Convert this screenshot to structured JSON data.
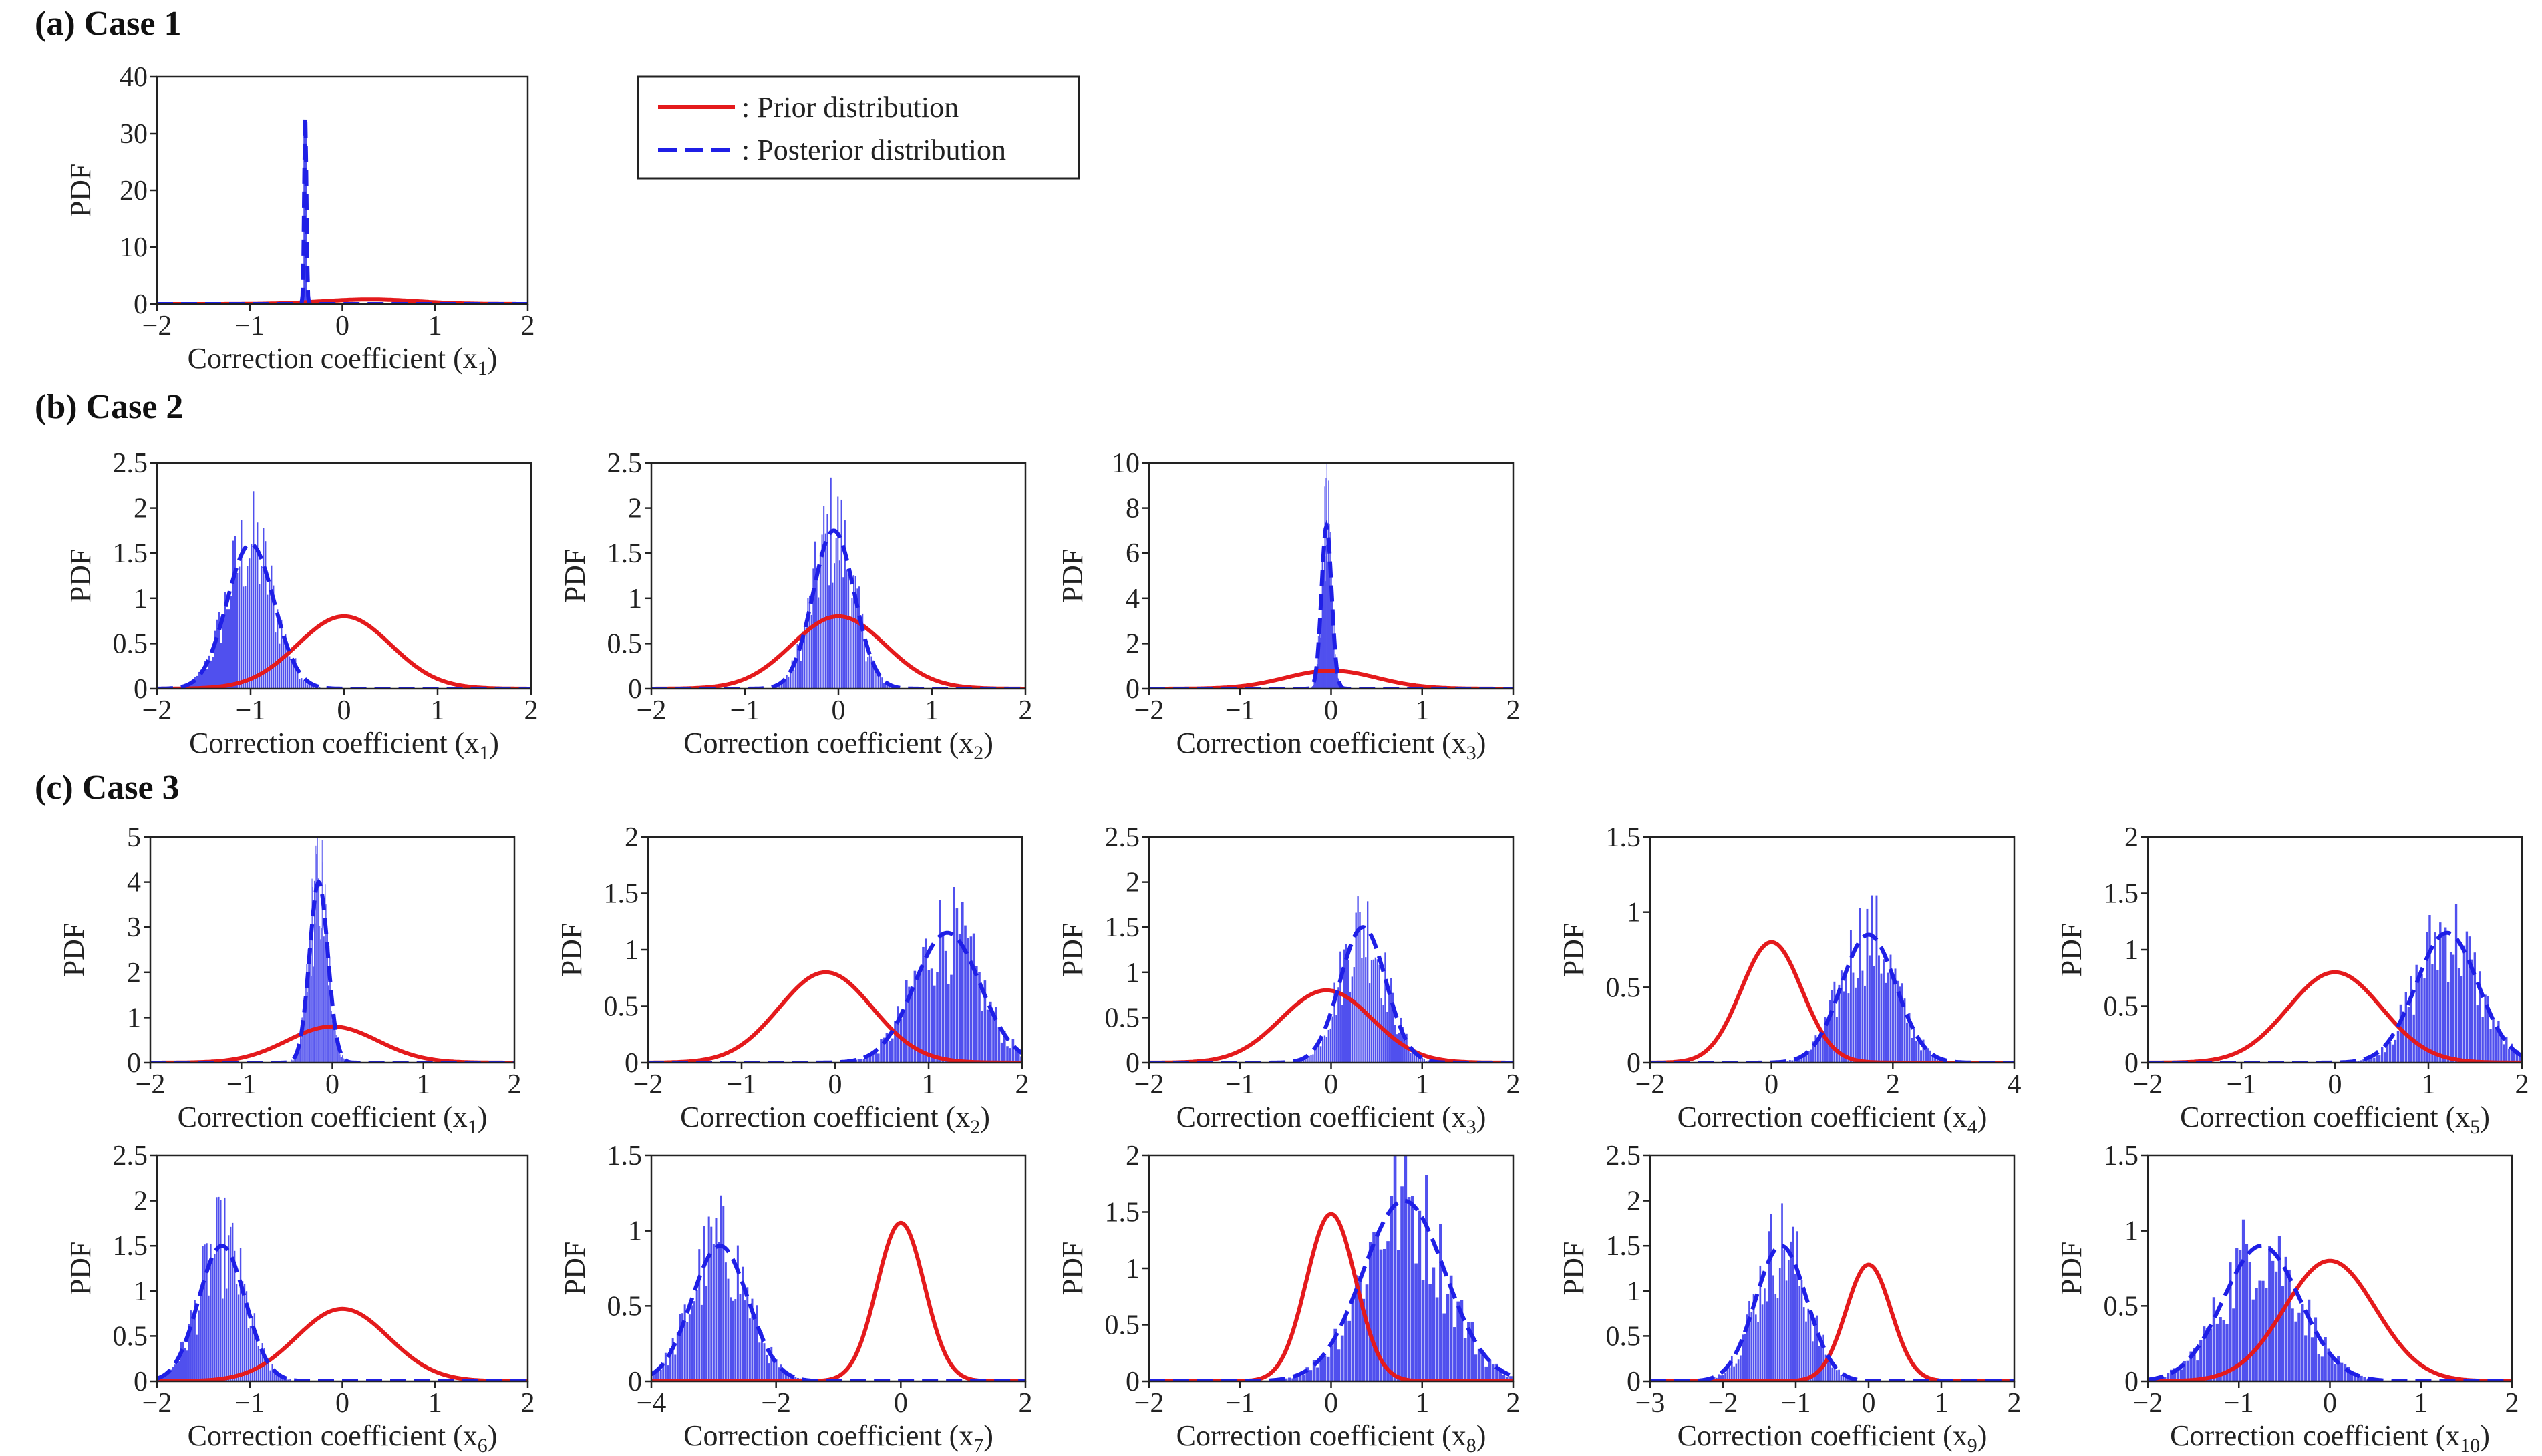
{
  "figure": {
    "legend": {
      "prior_label": ": Prior distribution",
      "posterior_label": ": Posterior distribution",
      "prior_color": "#e41a1c",
      "posterior_color": "#1f1fe6",
      "hist_color": "#5050ee"
    }
  },
  "chart_data": [
    {
      "type": "histogram",
      "case": "(a) Case 1",
      "panel": "a1",
      "var": "1",
      "xlabel": "Correction coefficient (x",
      "ylabel": "PDF",
      "xlim": [
        -2,
        2
      ],
      "ylim": [
        0,
        40
      ],
      "xticks": [
        "−2",
        "−1",
        "0",
        "1",
        "2"
      ],
      "yticks": [
        "0",
        "10",
        "20",
        "30",
        "40"
      ],
      "prior": {
        "mean": 0.3,
        "sd": 0.5
      },
      "posterior": {
        "mean": -0.4,
        "sd": 0.012,
        "peak": 33
      },
      "hist_mode": "spike"
    },
    {
      "type": "histogram",
      "case": "(b) Case 2",
      "panel": "b1",
      "var": "1",
      "xlabel": "Correction coefficient (x",
      "ylabel": "PDF",
      "xlim": [
        -2,
        2
      ],
      "ylim": [
        0,
        2.5
      ],
      "xticks": [
        "−2",
        "−1",
        "0",
        "1",
        "2"
      ],
      "yticks": [
        "0",
        "0.5",
        "1",
        "1.5",
        "2",
        "2.5"
      ],
      "prior": {
        "mean": 0,
        "sd": 0.5
      },
      "posterior": {
        "mean": -1.0,
        "sd": 0.25,
        "peak": 1.6
      }
    },
    {
      "type": "histogram",
      "case": "(b) Case 2",
      "panel": "b2",
      "var": "2",
      "xlabel": "Correction coefficient (x",
      "ylabel": "PDF",
      "xlim": [
        -2,
        2
      ],
      "ylim": [
        0,
        2.5
      ],
      "xticks": [
        "−2",
        "−1",
        "0",
        "1",
        "2"
      ],
      "yticks": [
        "0",
        "0.5",
        "1",
        "1.5",
        "2",
        "2.5"
      ],
      "prior": {
        "mean": 0,
        "sd": 0.5
      },
      "posterior": {
        "mean": -0.05,
        "sd": 0.22,
        "peak": 1.75
      }
    },
    {
      "type": "histogram",
      "case": "(b) Case 2",
      "panel": "b3",
      "var": "3",
      "xlabel": "Correction coefficient (x",
      "ylabel": "PDF",
      "xlim": [
        -2,
        2
      ],
      "ylim": [
        0,
        10
      ],
      "xticks": [
        "−2",
        "−1",
        "0",
        "1",
        "2"
      ],
      "yticks": [
        "0",
        "2",
        "4",
        "6",
        "8",
        "10"
      ],
      "prior": {
        "mean": 0,
        "sd": 0.5
      },
      "posterior": {
        "mean": -0.05,
        "sd": 0.055,
        "peak": 7.2
      }
    },
    {
      "type": "histogram",
      "case": "(c) Case 3",
      "panel": "c1",
      "var": "1",
      "xlabel": "Correction coefficient (x",
      "ylabel": "PDF",
      "xlim": [
        -2,
        2
      ],
      "ylim": [
        0,
        5
      ],
      "xticks": [
        "−2",
        "−1",
        "0",
        "1",
        "2"
      ],
      "yticks": [
        "0",
        "1",
        "2",
        "3",
        "4",
        "5"
      ],
      "prior": {
        "mean": 0,
        "sd": 0.5
      },
      "posterior": {
        "mean": -0.15,
        "sd": 0.1,
        "peak": 4.0
      }
    },
    {
      "type": "histogram",
      "case": "(c) Case 3",
      "panel": "c2",
      "var": "2",
      "xlabel": "Correction coefficient (x",
      "ylabel": "PDF",
      "xlim": [
        -2,
        2
      ],
      "ylim": [
        0,
        2
      ],
      "xticks": [
        "−2",
        "−1",
        "0",
        "1",
        "2"
      ],
      "yticks": [
        "0",
        "0.5",
        "1",
        "1.5",
        "2"
      ],
      "prior": {
        "mean": -0.1,
        "sd": 0.5
      },
      "posterior": {
        "mean": 1.2,
        "sd": 0.35,
        "peak": 1.15
      }
    },
    {
      "type": "histogram",
      "case": "(c) Case 3",
      "panel": "c3",
      "var": "3",
      "xlabel": "Correction coefficient (x",
      "ylabel": "PDF",
      "xlim": [
        -2,
        2
      ],
      "ylim": [
        0,
        2.5
      ],
      "xticks": [
        "−2",
        "−1",
        "0",
        "1",
        "2"
      ],
      "yticks": [
        "0",
        "0.5",
        "1",
        "1.5",
        "2",
        "2.5"
      ],
      "prior": {
        "mean": -0.05,
        "sd": 0.5
      },
      "posterior": {
        "mean": 0.35,
        "sd": 0.25,
        "peak": 1.5
      }
    },
    {
      "type": "histogram",
      "case": "(c) Case 3",
      "panel": "c4",
      "var": "4",
      "xlabel": "Correction coefficient (x",
      "ylabel": "PDF",
      "xlim": [
        -2,
        4
      ],
      "ylim": [
        0,
        1.5
      ],
      "xticks": [
        "−2",
        "0",
        "2",
        "4"
      ],
      "yticks": [
        "0",
        "0.5",
        "1",
        "1.5"
      ],
      "prior": {
        "mean": 0,
        "sd": 0.5
      },
      "posterior": {
        "mean": 1.6,
        "sd": 0.45,
        "peak": 0.85
      }
    },
    {
      "type": "histogram",
      "case": "(c) Case 3",
      "panel": "c5",
      "var": "5",
      "xlabel": "Correction coefficient (x",
      "ylabel": "PDF",
      "xlim": [
        -2,
        2
      ],
      "ylim": [
        0,
        2
      ],
      "xticks": [
        "−2",
        "−1",
        "0",
        "1",
        "2"
      ],
      "yticks": [
        "0",
        "0.5",
        "1",
        "1.5",
        "2"
      ],
      "prior": {
        "mean": 0,
        "sd": 0.5
      },
      "posterior": {
        "mean": 1.2,
        "sd": 0.33,
        "peak": 1.15
      }
    },
    {
      "type": "histogram",
      "case": "(c) Case 3",
      "panel": "c6",
      "var": "6",
      "xlabel": "Correction coefficient (x",
      "ylabel": "PDF",
      "xlim": [
        -2,
        2
      ],
      "ylim": [
        0,
        2.5
      ],
      "xticks": [
        "−2",
        "−1",
        "0",
        "1",
        "2"
      ],
      "yticks": [
        "0",
        "0.5",
        "1",
        "1.5",
        "2",
        "2.5"
      ],
      "prior": {
        "mean": 0,
        "sd": 0.5
      },
      "posterior": {
        "mean": -1.3,
        "sd": 0.25,
        "peak": 1.5
      }
    },
    {
      "type": "histogram",
      "case": "(c) Case 3",
      "panel": "c7",
      "var": "7",
      "xlabel": "Correction coefficient (x",
      "ylabel": "PDF",
      "xlim": [
        -4,
        2
      ],
      "ylim": [
        0,
        1.5
      ],
      "xticks": [
        "−4",
        "−2",
        "0",
        "2"
      ],
      "yticks": [
        "0",
        "0.5",
        "1",
        "1.5"
      ],
      "prior": {
        "mean": 0,
        "sd": 0.38
      },
      "posterior": {
        "mean": -2.9,
        "sd": 0.45,
        "peak": 0.9
      }
    },
    {
      "type": "histogram",
      "case": "(c) Case 3",
      "panel": "c8",
      "var": "8",
      "xlabel": "Correction coefficient (x",
      "ylabel": "PDF",
      "xlim": [
        -2,
        2
      ],
      "ylim": [
        0,
        2
      ],
      "xticks": [
        "−2",
        "−1",
        "0",
        "1",
        "2"
      ],
      "yticks": [
        "0",
        "0.5",
        "1",
        "1.5",
        "2"
      ],
      "prior": {
        "mean": 0,
        "sd": 0.27
      },
      "posterior": {
        "mean": 0.8,
        "sd": 0.45,
        "peak": 1.6
      }
    },
    {
      "type": "histogram",
      "case": "(c) Case 3",
      "panel": "c9",
      "var": "9",
      "xlabel": "Correction coefficient (x",
      "ylabel": "PDF",
      "xlim": [
        -3,
        2
      ],
      "ylim": [
        0,
        2.5
      ],
      "xticks": [
        "−3",
        "−2",
        "−1",
        "0",
        "1",
        "2"
      ],
      "yticks": [
        "0",
        "0.5",
        "1",
        "1.5",
        "2",
        "2.5"
      ],
      "prior": {
        "mean": 0,
        "sd": 0.31
      },
      "posterior": {
        "mean": -1.2,
        "sd": 0.35,
        "peak": 1.5
      }
    },
    {
      "type": "histogram",
      "case": "(c) Case 3",
      "panel": "c10",
      "var": "10",
      "xlabel": "Correction coefficient (x",
      "ylabel": "PDF",
      "xlim": [
        -2,
        2
      ],
      "ylim": [
        0,
        1.5
      ],
      "xticks": [
        "−2",
        "−1",
        "0",
        "1",
        "2"
      ],
      "yticks": [
        "0",
        "0.5",
        "1",
        "1.5"
      ],
      "prior": {
        "mean": 0,
        "sd": 0.5
      },
      "posterior": {
        "mean": -0.75,
        "sd": 0.42,
        "peak": 0.9
      }
    }
  ]
}
